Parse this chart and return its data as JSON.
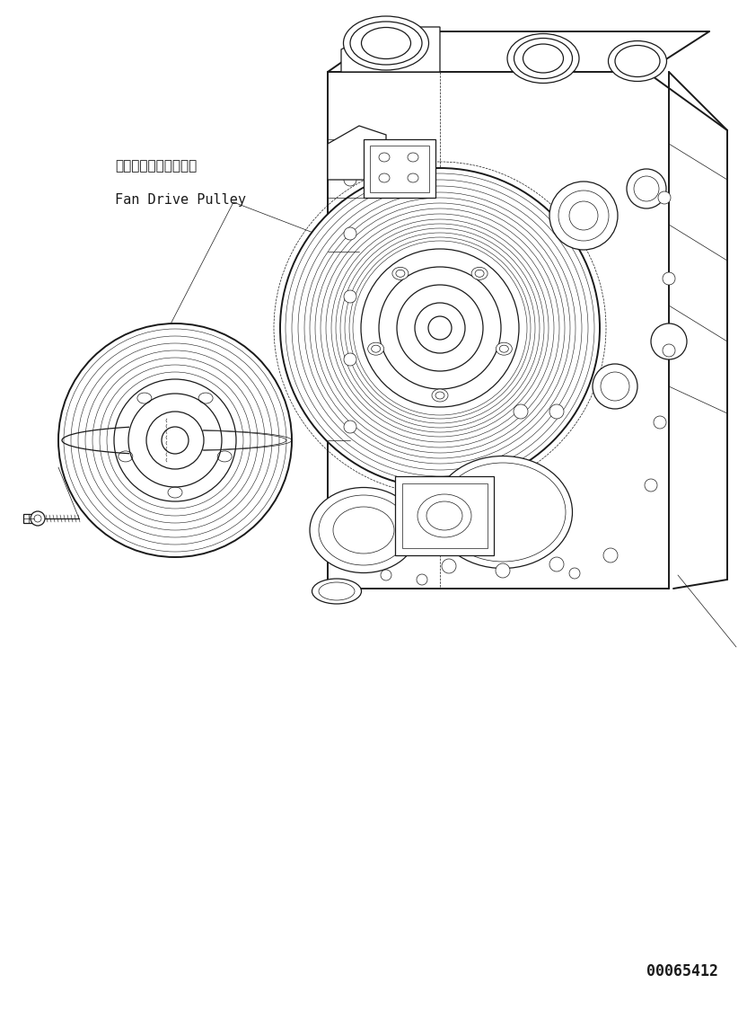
{
  "part_number": "00065412",
  "label_japanese": "ファンドライブプーリ",
  "label_english": "Fan Drive Pulley",
  "bg_color": "#ffffff",
  "line_color": "#1a1a1a",
  "font_size_jp": 11,
  "font_size_en": 11,
  "font_size_partno": 12,
  "lw_main": 0.9,
  "lw_thick": 1.4,
  "lw_thin": 0.5,
  "lw_groove": 0.4
}
